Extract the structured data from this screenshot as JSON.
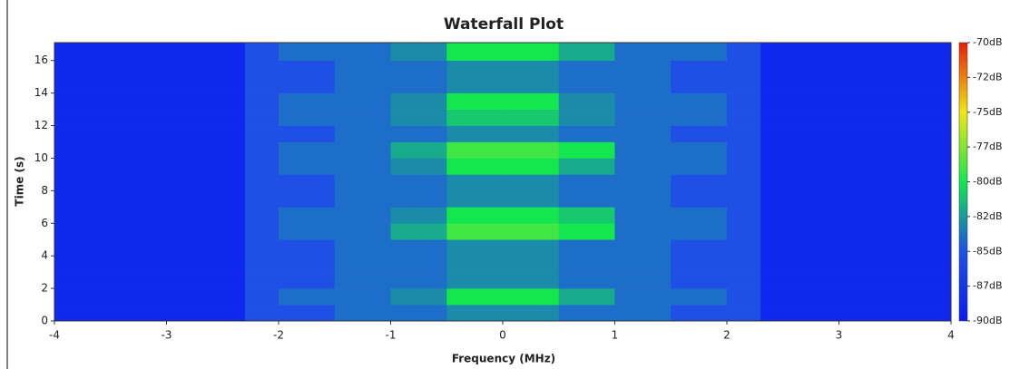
{
  "chart_data": {
    "type": "heatmap",
    "title": "Waterfall Plot",
    "x_label": "Frequency (MHz)",
    "y_label": "Time (s)",
    "xlim": [
      -4,
      4
    ],
    "ylim": [
      0,
      17.1
    ],
    "xticks": [
      -4,
      -3,
      -2,
      -1,
      0,
      1,
      2,
      3,
      4
    ],
    "yticks": [
      0,
      2,
      4,
      6,
      8,
      10,
      12,
      14,
      16
    ],
    "x": [
      -4,
      -2.3,
      -2,
      -1.5,
      -1,
      -0.5,
      0,
      0.5,
      1,
      1.5,
      2,
      2.3,
      4
    ],
    "y": [
      0,
      1,
      2,
      3,
      4,
      5,
      6,
      7,
      8,
      9,
      10,
      11,
      12,
      13,
      14,
      15,
      16,
      17.1
    ],
    "z": [
      [
        -89,
        -85,
        -85,
        -84,
        -84,
        -83,
        -83,
        -84,
        -84,
        -85,
        -85,
        -89
      ],
      [
        -89,
        -85,
        -84,
        -84,
        -83,
        -80,
        -80,
        -82,
        -84,
        -84,
        -85,
        -89
      ],
      [
        -89,
        -85,
        -85,
        -84,
        -84,
        -83,
        -83,
        -84,
        -84,
        -85,
        -85,
        -89
      ],
      [
        -89,
        -85,
        -85,
        -84,
        -84,
        -83,
        -83,
        -84,
        -84,
        -85,
        -85,
        -89
      ],
      [
        -89,
        -85,
        -85,
        -84,
        -84,
        -83,
        -83,
        -84,
        -84,
        -85,
        -85,
        -89
      ],
      [
        -89,
        -85,
        -84,
        -84,
        -82,
        -79,
        -79,
        -80,
        -84,
        -84,
        -85,
        -89
      ],
      [
        -89,
        -85,
        -84,
        -84,
        -83,
        -80,
        -80,
        -81,
        -84,
        -84,
        -85,
        -89
      ],
      [
        -89,
        -85,
        -85,
        -84,
        -84,
        -83,
        -83,
        -84,
        -84,
        -85,
        -85,
        -89
      ],
      [
        -89,
        -85,
        -85,
        -84,
        -84,
        -83,
        -83,
        -84,
        -84,
        -85,
        -85,
        -89
      ],
      [
        -89,
        -85,
        -84,
        -84,
        -83,
        -80,
        -80,
        -82,
        -84,
        -84,
        -85,
        -89
      ],
      [
        -89,
        -85,
        -84,
        -84,
        -82,
        -79,
        -79,
        -80,
        -84,
        -84,
        -85,
        -89
      ],
      [
        -89,
        -85,
        -85,
        -84,
        -84,
        -83,
        -83,
        -84,
        -84,
        -85,
        -85,
        -89
      ],
      [
        -89,
        -85,
        -84,
        -84,
        -83,
        -81,
        -81,
        -83,
        -84,
        -84,
        -85,
        -89
      ],
      [
        -89,
        -85,
        -84,
        -84,
        -83,
        -80,
        -80,
        -83,
        -84,
        -84,
        -85,
        -89
      ],
      [
        -89,
        -85,
        -85,
        -84,
        -84,
        -83,
        -83,
        -84,
        -84,
        -85,
        -85,
        -89
      ],
      [
        -89,
        -85,
        -85,
        -84,
        -84,
        -83,
        -83,
        -84,
        -84,
        -85,
        -85,
        -89
      ],
      [
        -89,
        -85,
        -84,
        -84,
        -83,
        -80,
        -80,
        -82,
        -84,
        -84,
        -85,
        -89
      ]
    ],
    "zlim": [
      -90,
      -70
    ],
    "zticks": [
      {
        "value": -70,
        "label": "-70dB"
      },
      {
        "value": -72.5,
        "label": "-72dB"
      },
      {
        "value": -75,
        "label": "-75dB"
      },
      {
        "value": -77.5,
        "label": "-77dB"
      },
      {
        "value": -80,
        "label": "-80dB"
      },
      {
        "value": -82.5,
        "label": "-82dB"
      },
      {
        "value": -85,
        "label": "-85dB"
      },
      {
        "value": -87.5,
        "label": "-87dB"
      },
      {
        "value": -90,
        "label": "-90dB"
      }
    ],
    "colors": [
      "#0a1ef0",
      "#1e50e6",
      "#14e650",
      "#f0e614",
      "#e61e0a"
    ]
  }
}
